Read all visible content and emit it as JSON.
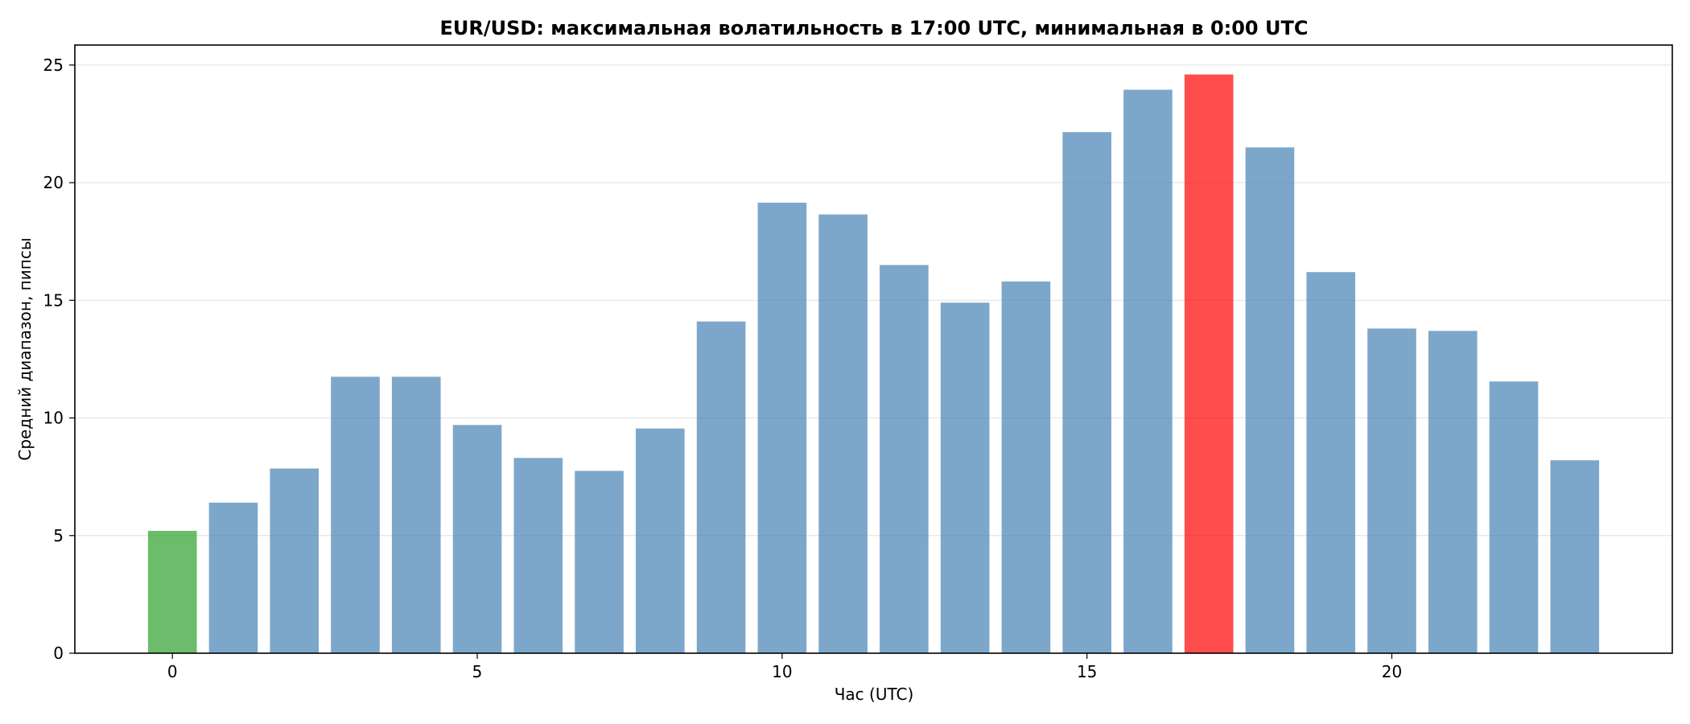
{
  "chart_data": {
    "type": "bar",
    "title": "EUR/USD: максимальная волатильность в 17:00 UTC, минимальная в 0:00 UTC",
    "xlabel": "Час (UTC)",
    "ylabel": "Средний диапазон, пипсы",
    "x": [
      0,
      1,
      2,
      3,
      4,
      5,
      6,
      7,
      8,
      9,
      10,
      11,
      12,
      13,
      14,
      15,
      16,
      17,
      18,
      19,
      20,
      21,
      22,
      23
    ],
    "values": [
      5.2,
      6.4,
      7.85,
      11.75,
      11.75,
      9.7,
      8.3,
      7.75,
      9.55,
      14.1,
      19.15,
      18.65,
      16.5,
      14.9,
      15.8,
      22.15,
      23.95,
      24.6,
      21.5,
      16.2,
      13.8,
      13.7,
      11.55,
      8.2
    ],
    "xlim": [
      -1.6,
      24.6
    ],
    "ylim": [
      0,
      25.85
    ],
    "xticks": [
      0,
      5,
      10,
      15,
      20
    ],
    "yticks": [
      0,
      5,
      10,
      15,
      20,
      25
    ],
    "grid": "y-axis only",
    "colors": {
      "default": "#4682b4",
      "min": "#2ca02c",
      "max": "#ff0000"
    },
    "bar_opacity": 0.7,
    "highlight": {
      "min_hour": 0,
      "max_hour": 17
    }
  }
}
